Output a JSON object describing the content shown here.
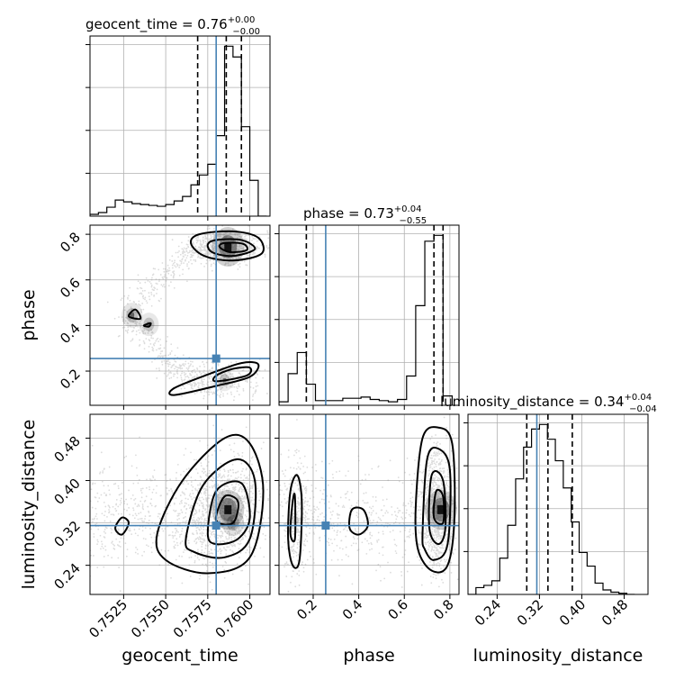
{
  "chart_data": {
    "type": "corner",
    "parameters": [
      "geocent_time",
      "phase",
      "luminosity_distance"
    ],
    "axis_labels": {
      "geocent_time": "geocent_time",
      "phase": "phase",
      "luminosity_distance": "luminosity_distance"
    },
    "ranges": {
      "geocent_time": [
        0.7505,
        0.7612
      ],
      "phase": [
        0.05,
        0.84
      ],
      "luminosity_distance": [
        0.185,
        0.525
      ]
    },
    "ticks": {
      "geocent_time": [
        0.7525,
        0.755,
        0.7575,
        0.76
      ],
      "phase": [
        0.2,
        0.4,
        0.6,
        0.8
      ],
      "luminosity_distance": [
        0.24,
        0.32,
        0.4,
        0.48
      ]
    },
    "tick_labels": {
      "geocent_time": [
        "0.7525",
        "0.7550",
        "0.7575",
        "0.7600"
      ],
      "phase": [
        "0.2",
        "0.4",
        "0.6",
        "0.8"
      ],
      "luminosity_distance": [
        "0.24",
        "0.32",
        "0.40",
        "0.48"
      ]
    },
    "truths": {
      "geocent_time": 0.758,
      "phase": 0.255,
      "luminosity_distance": 0.315
    },
    "titles": [
      {
        "param": "geocent_time",
        "label": "geocent_time",
        "median": "0.76",
        "plus": "+0.00",
        "minus": "−0.00"
      },
      {
        "param": "phase",
        "label": "phase",
        "median": "0.73",
        "plus": "+0.04",
        "minus": "−0.55"
      },
      {
        "param": "luminosity_distance",
        "label": "luminosity_distance",
        "median": "0.34",
        "plus": "+0.04",
        "minus": "−0.04"
      }
    ],
    "quantiles": {
      "geocent_time": [
        0.7569,
        0.7586,
        0.7595
      ],
      "phase": [
        0.17,
        0.73,
        0.77
      ],
      "luminosity_distance": [
        0.296,
        0.336,
        0.382
      ]
    },
    "histograms": {
      "geocent_time": {
        "edges": [
          0.7505,
          0.751,
          0.7515,
          0.752,
          0.7525,
          0.753,
          0.7535,
          0.754,
          0.7545,
          0.755,
          0.7555,
          0.756,
          0.7565,
          0.757,
          0.7575,
          0.758,
          0.7585,
          0.759,
          0.7595,
          0.76,
          0.7605,
          0.761
        ],
        "counts": [
          2,
          4,
          10,
          18,
          16,
          14,
          13,
          12,
          11,
          13,
          17,
          22,
          35,
          46,
          58,
          90,
          190,
          178,
          100,
          40,
          0
        ]
      },
      "phase": {
        "edges": [
          0.05,
          0.09,
          0.13,
          0.17,
          0.21,
          0.25,
          0.29,
          0.33,
          0.37,
          0.41,
          0.45,
          0.49,
          0.53,
          0.57,
          0.61,
          0.65,
          0.69,
          0.73,
          0.77,
          0.81
        ],
        "counts": [
          3,
          27,
          45,
          18,
          4,
          4,
          4,
          6,
          6,
          7,
          5,
          4,
          3,
          5,
          25,
          85,
          140,
          145,
          8
        ]
      },
      "luminosity_distance": {
        "edges": [
          0.185,
          0.2,
          0.215,
          0.23,
          0.245,
          0.26,
          0.275,
          0.29,
          0.305,
          0.32,
          0.335,
          0.35,
          0.365,
          0.38,
          0.395,
          0.41,
          0.425,
          0.44,
          0.455,
          0.47,
          0.485,
          0.5
        ],
        "counts": [
          0,
          6,
          8,
          12,
          32,
          61,
          102,
          130,
          146,
          150,
          137,
          118,
          94,
          64,
          37,
          25,
          10,
          4,
          2,
          1,
          0
        ]
      }
    },
    "pair_panels": [
      {
        "x": "geocent_time",
        "y": "phase"
      },
      {
        "x": "geocent_time",
        "y": "luminosity_distance"
      },
      {
        "x": "phase",
        "y": "luminosity_distance"
      }
    ],
    "contours": {
      "geocent_time|phase": [
        [
          [
            0.757,
            0.8
          ],
          [
            0.759,
            0.813
          ],
          [
            0.7605,
            0.785
          ],
          [
            0.7607,
            0.715
          ],
          [
            0.759,
            0.685
          ],
          [
            0.7573,
            0.705
          ],
          [
            0.7565,
            0.76
          ]
        ],
        [
          [
            0.758,
            0.775
          ],
          [
            0.7595,
            0.775
          ],
          [
            0.7603,
            0.735
          ],
          [
            0.759,
            0.705
          ],
          [
            0.7578,
            0.72
          ],
          [
            0.7575,
            0.755
          ]
        ],
        [
          [
            0.7585,
            0.762
          ],
          [
            0.7596,
            0.758
          ],
          [
            0.7598,
            0.73
          ],
          [
            0.7588,
            0.722
          ],
          [
            0.7582,
            0.745
          ]
        ],
        [
          [
            0.7555,
            0.095
          ],
          [
            0.758,
            0.135
          ],
          [
            0.76,
            0.175
          ],
          [
            0.7605,
            0.23
          ],
          [
            0.7595,
            0.235
          ],
          [
            0.7575,
            0.185
          ],
          [
            0.7555,
            0.125
          ]
        ],
        [
          [
            0.758,
            0.155
          ],
          [
            0.7598,
            0.18
          ],
          [
            0.76,
            0.215
          ],
          [
            0.759,
            0.21
          ],
          [
            0.758,
            0.18
          ]
        ],
        [
          [
            0.7528,
            0.44
          ],
          [
            0.7532,
            0.47
          ],
          [
            0.7535,
            0.43
          ]
        ],
        [
          [
            0.7537,
            0.4
          ],
          [
            0.7541,
            0.41
          ],
          [
            0.754,
            0.395
          ]
        ]
      ],
      "geocent_time|luminosity_distance": [
        [
          [
            0.752,
            0.31
          ],
          [
            0.7524,
            0.33
          ],
          [
            0.7528,
            0.32
          ],
          [
            0.7524,
            0.298
          ]
        ],
        [
          [
            0.7545,
            0.3
          ],
          [
            0.756,
            0.4
          ],
          [
            0.7585,
            0.48
          ],
          [
            0.76,
            0.47
          ],
          [
            0.7608,
            0.38
          ],
          [
            0.76,
            0.255
          ],
          [
            0.7575,
            0.225
          ],
          [
            0.755,
            0.25
          ]
        ],
        [
          [
            0.7562,
            0.29
          ],
          [
            0.7572,
            0.39
          ],
          [
            0.7592,
            0.44
          ],
          [
            0.7603,
            0.4
          ],
          [
            0.76,
            0.29
          ],
          [
            0.7585,
            0.255
          ],
          [
            0.7567,
            0.265
          ]
        ],
        [
          [
            0.7575,
            0.3
          ],
          [
            0.758,
            0.38
          ],
          [
            0.7595,
            0.395
          ],
          [
            0.76,
            0.33
          ],
          [
            0.7593,
            0.29
          ],
          [
            0.758,
            0.28
          ]
        ],
        [
          [
            0.758,
            0.325
          ],
          [
            0.7585,
            0.37
          ],
          [
            0.7593,
            0.36
          ],
          [
            0.759,
            0.32
          ]
        ]
      ],
      "phase|luminosity_distance": [
        [
          [
            0.09,
            0.29
          ],
          [
            0.1,
            0.38
          ],
          [
            0.13,
            0.41
          ],
          [
            0.15,
            0.36
          ],
          [
            0.14,
            0.25
          ],
          [
            0.11,
            0.24
          ]
        ],
        [
          [
            0.1,
            0.3
          ],
          [
            0.11,
            0.36
          ],
          [
            0.12,
            0.37
          ],
          [
            0.12,
            0.29
          ]
        ],
        [
          [
            0.65,
            0.35
          ],
          [
            0.68,
            0.48
          ],
          [
            0.75,
            0.5
          ],
          [
            0.81,
            0.47
          ],
          [
            0.82,
            0.33
          ],
          [
            0.79,
            0.24
          ],
          [
            0.72,
            0.23
          ],
          [
            0.66,
            0.27
          ]
        ],
        [
          [
            0.68,
            0.3
          ],
          [
            0.7,
            0.44
          ],
          [
            0.75,
            0.46
          ],
          [
            0.8,
            0.42
          ],
          [
            0.79,
            0.28
          ],
          [
            0.73,
            0.25
          ],
          [
            0.69,
            0.27
          ]
        ],
        [
          [
            0.71,
            0.31
          ],
          [
            0.72,
            0.41
          ],
          [
            0.77,
            0.4
          ],
          [
            0.78,
            0.31
          ],
          [
            0.75,
            0.28
          ]
        ],
        [
          [
            0.73,
            0.33
          ],
          [
            0.74,
            0.38
          ],
          [
            0.77,
            0.37
          ],
          [
            0.77,
            0.32
          ]
        ],
        [
          [
            0.36,
            0.31
          ],
          [
            0.37,
            0.345
          ],
          [
            0.42,
            0.345
          ],
          [
            0.44,
            0.315
          ],
          [
            0.4,
            0.298
          ]
        ]
      ]
    },
    "density_peaks": {
      "geocent_time|phase": [
        [
          0.7587,
          0.745,
          1.0
        ],
        [
          0.7585,
          0.16,
          0.45
        ],
        [
          0.753,
          0.445,
          0.55
        ],
        [
          0.754,
          0.405,
          0.5
        ]
      ],
      "geocent_time|luminosity_distance": [
        [
          0.7587,
          0.345,
          1.0
        ],
        [
          0.759,
          0.32,
          0.6
        ]
      ],
      "phase|luminosity_distance": [
        [
          0.76,
          0.345,
          1.0
        ],
        [
          0.12,
          0.325,
          0.25
        ]
      ]
    }
  }
}
